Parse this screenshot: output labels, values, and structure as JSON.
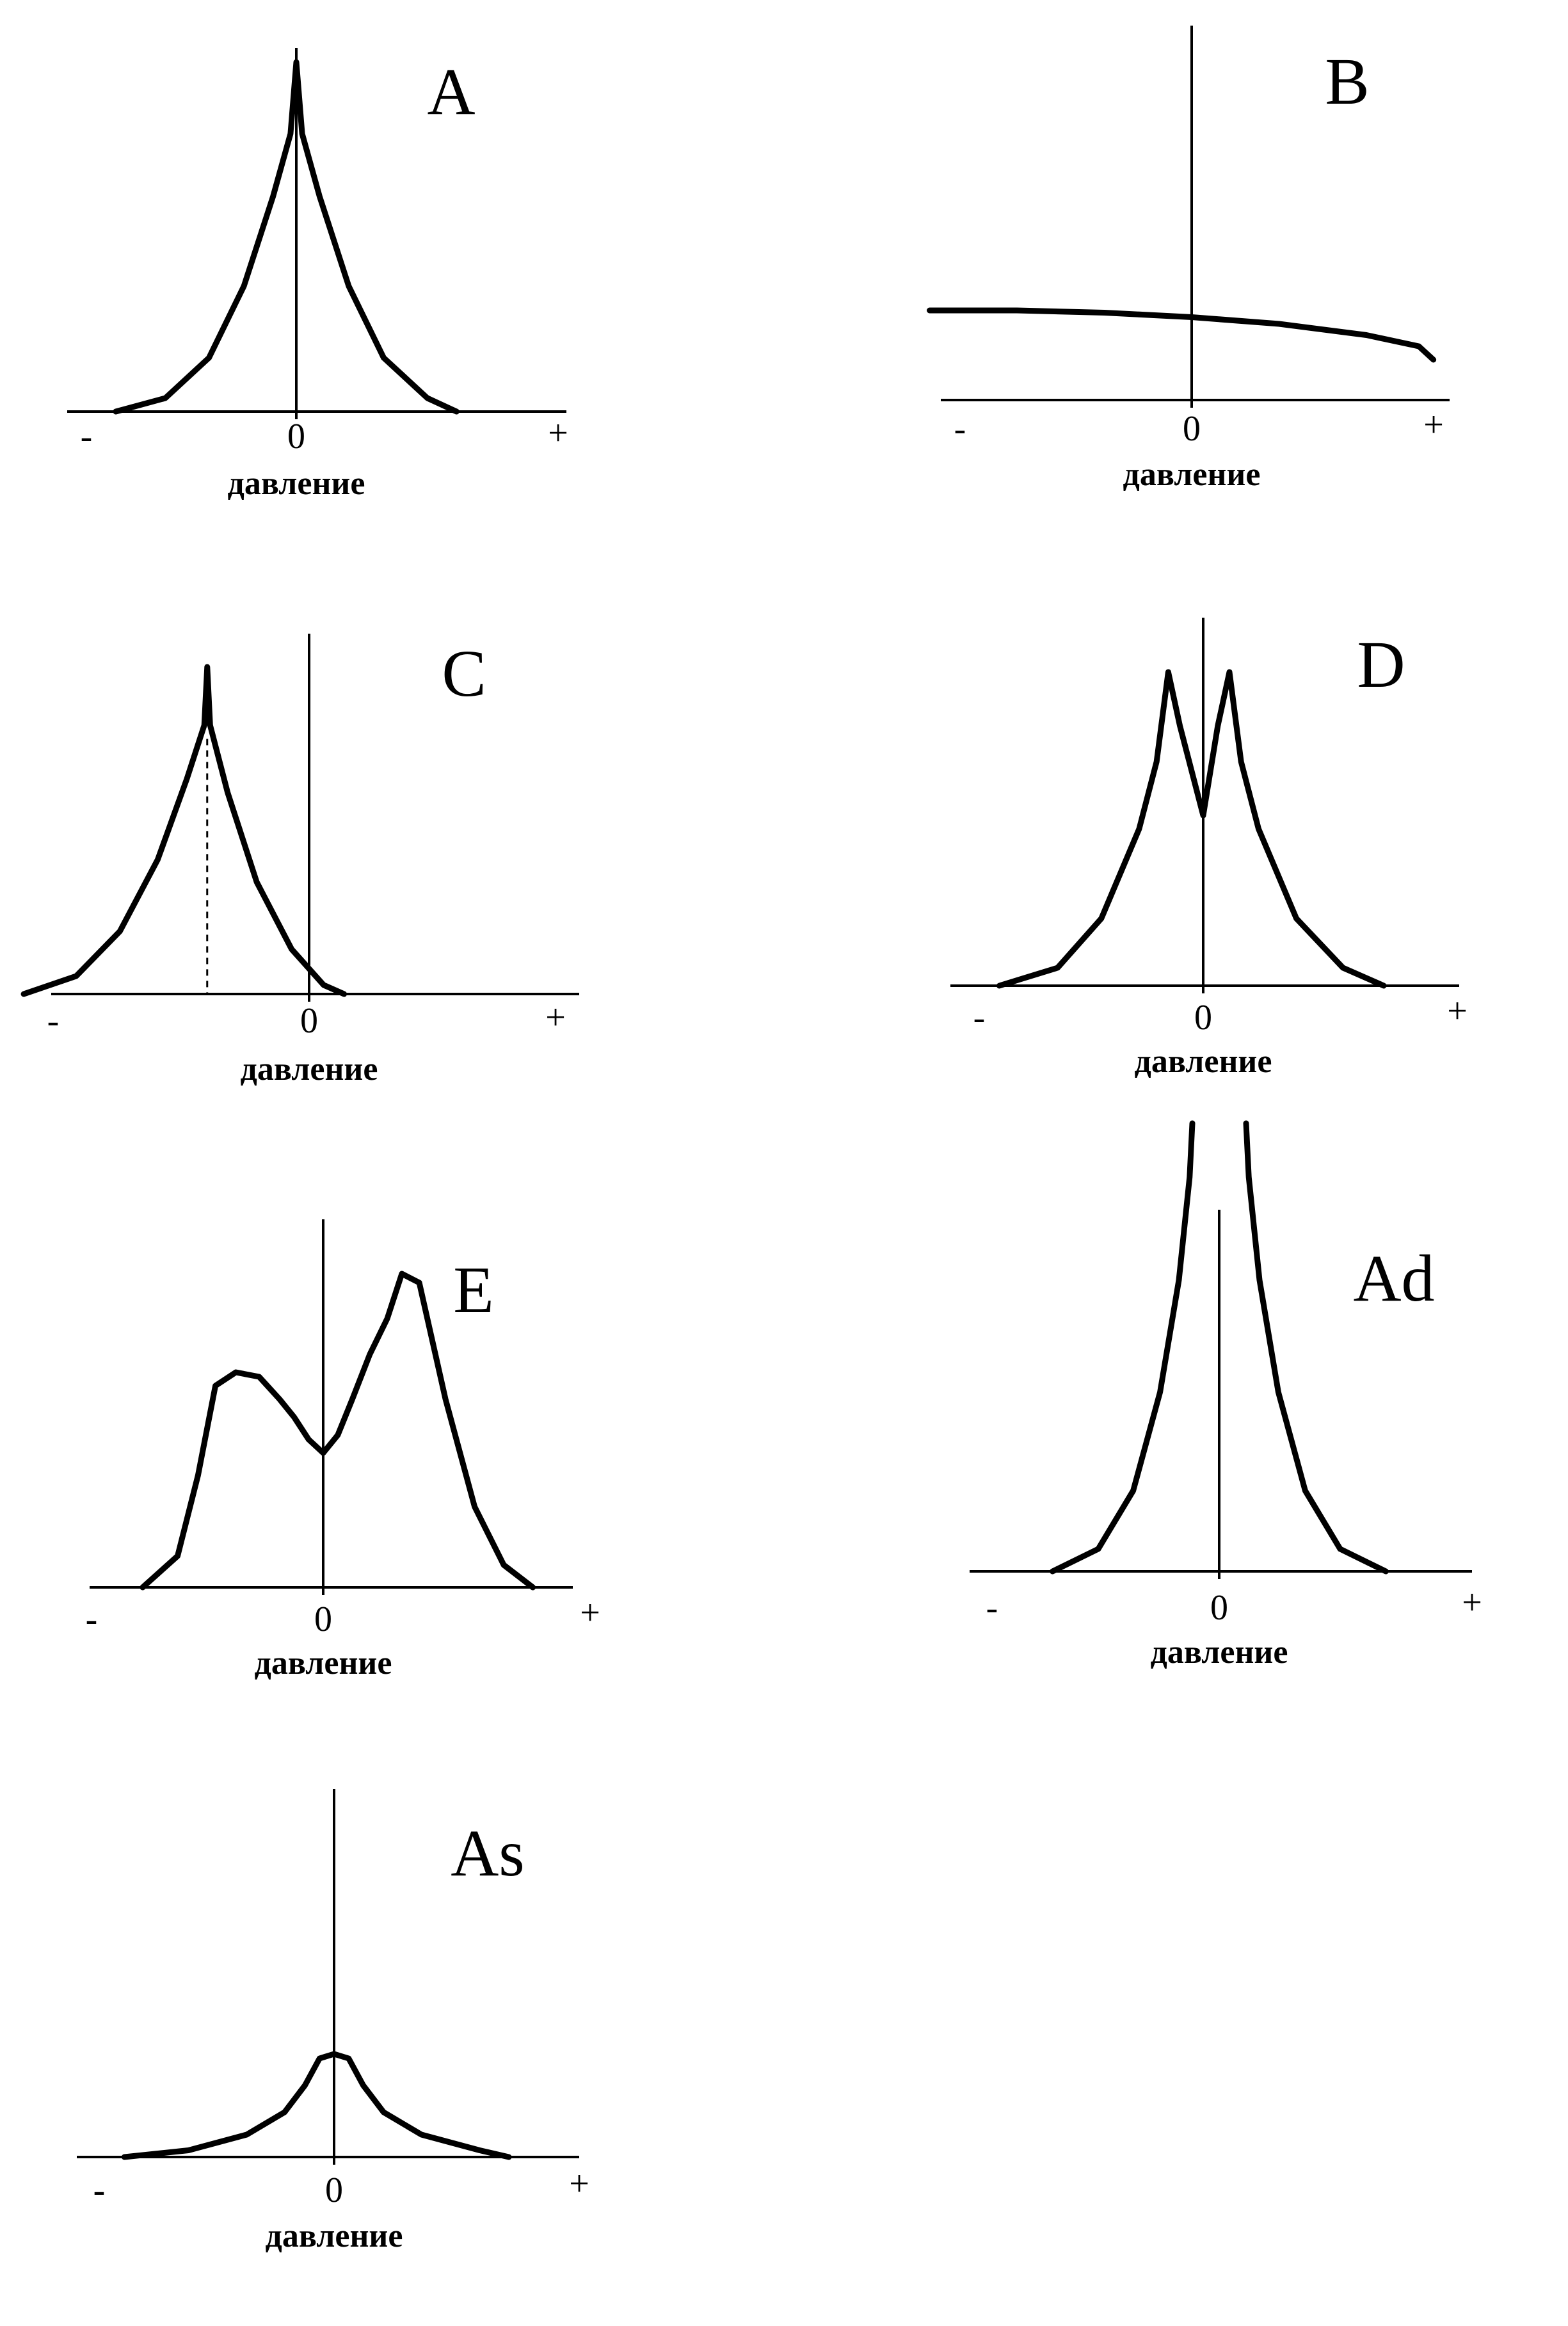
{
  "chart_data": [
    {
      "type": "line",
      "panel": "A",
      "xlabel": "давление",
      "x_ticks": {
        "minus": "-",
        "zero": "0",
        "plus": "+"
      },
      "xlim": [
        -1,
        1
      ],
      "ylim": [
        0,
        1
      ],
      "series": [
        {
          "x": [
            -0.62,
            -0.45,
            -0.3,
            -0.18,
            -0.08,
            -0.02,
            0,
            0.02,
            0.08,
            0.18,
            0.3,
            0.45,
            0.55
          ],
          "y": [
            0,
            0.03,
            0.12,
            0.28,
            0.48,
            0.62,
            0.78,
            0.62,
            0.48,
            0.28,
            0.12,
            0.03,
            0
          ]
        }
      ]
    },
    {
      "type": "line",
      "panel": "B",
      "xlabel": "давление",
      "x_ticks": {
        "minus": "-",
        "zero": "0",
        "plus": "+"
      },
      "xlim": [
        -1,
        1
      ],
      "ylim": [
        0,
        1
      ],
      "series": [
        {
          "x": [
            -0.9,
            -0.6,
            -0.3,
            0,
            0.3,
            0.6,
            0.78,
            0.83
          ],
          "y": [
            0.2,
            0.2,
            0.195,
            0.185,
            0.17,
            0.145,
            0.12,
            0.09
          ]
        }
      ]
    },
    {
      "type": "line",
      "panel": "C",
      "xlabel": "давление",
      "x_ticks": {
        "minus": "-",
        "zero": "0",
        "plus": "+"
      },
      "xlim": [
        -1,
        1
      ],
      "ylim": [
        0,
        1
      ],
      "peak_x": -0.35,
      "series": [
        {
          "x": [
            -0.98,
            -0.8,
            -0.65,
            -0.52,
            -0.42,
            -0.36,
            -0.35,
            -0.34,
            -0.28,
            -0.18,
            -0.06,
            0.05,
            0.12
          ],
          "y": [
            0,
            0.04,
            0.14,
            0.3,
            0.48,
            0.6,
            0.73,
            0.6,
            0.45,
            0.25,
            0.1,
            0.02,
            0
          ]
        }
      ]
    },
    {
      "type": "line",
      "panel": "D",
      "xlabel": "давление",
      "x_ticks": {
        "minus": "-",
        "zero": "0",
        "plus": "+"
      },
      "xlim": [
        -1,
        1
      ],
      "ylim": [
        0,
        1
      ],
      "series": [
        {
          "x": [
            -0.7,
            -0.5,
            -0.35,
            -0.22,
            -0.16,
            -0.12,
            -0.08,
            0,
            0.05,
            0.09,
            0.13,
            0.19,
            0.32,
            0.48,
            0.62
          ],
          "y": [
            0,
            0.04,
            0.15,
            0.35,
            0.5,
            0.7,
            0.58,
            0.38,
            0.58,
            0.7,
            0.5,
            0.35,
            0.15,
            0.04,
            0
          ]
        }
      ]
    },
    {
      "type": "line",
      "panel": "E",
      "xlabel": "давление",
      "x_ticks": {
        "minus": "-",
        "zero": "0",
        "plus": "+"
      },
      "xlim": [
        -1,
        1
      ],
      "ylim": [
        0,
        1
      ],
      "series": [
        {
          "x": [
            -0.62,
            -0.5,
            -0.43,
            -0.37,
            -0.3,
            -0.22,
            -0.15,
            -0.1,
            -0.05,
            0,
            0.05,
            0.1,
            0.16,
            0.22,
            0.27,
            0.33,
            0.42,
            0.52,
            0.62,
            0.72
          ],
          "y": [
            0,
            0.07,
            0.25,
            0.45,
            0.48,
            0.47,
            0.42,
            0.38,
            0.33,
            0.3,
            0.34,
            0.42,
            0.52,
            0.6,
            0.7,
            0.68,
            0.42,
            0.18,
            0.05,
            0
          ]
        }
      ]
    },
    {
      "type": "line",
      "panel": "Ad",
      "xlabel": "давление",
      "x_ticks": {
        "minus": "-",
        "zero": "0",
        "plus": "+"
      },
      "xlim": [
        -1,
        1
      ],
      "ylim": [
        0,
        1
      ],
      "series": [
        {
          "x": [
            -0.62,
            -0.45,
            -0.32,
            -0.22,
            -0.15,
            -0.11,
            -0.1
          ],
          "y": [
            0,
            0.05,
            0.18,
            0.4,
            0.65,
            0.88,
            1
          ]
        },
        {
          "x": [
            0.1,
            0.11,
            0.15,
            0.22,
            0.32,
            0.45,
            0.62
          ],
          "y": [
            1,
            0.88,
            0.65,
            0.4,
            0.18,
            0.05,
            0
          ]
        }
      ]
    },
    {
      "type": "line",
      "panel": "As",
      "xlabel": "давление",
      "x_ticks": {
        "minus": "-",
        "zero": "0",
        "plus": "+"
      },
      "xlim": [
        -1,
        1
      ],
      "ylim": [
        0,
        1
      ],
      "series": [
        {
          "x": [
            -0.72,
            -0.5,
            -0.3,
            -0.17,
            -0.1,
            -0.05,
            0,
            0.05,
            0.1,
            0.17,
            0.3,
            0.5,
            0.6
          ],
          "y": [
            0,
            0.015,
            0.05,
            0.1,
            0.16,
            0.22,
            0.23,
            0.22,
            0.16,
            0.1,
            0.05,
            0.015,
            0
          ]
        }
      ]
    }
  ]
}
